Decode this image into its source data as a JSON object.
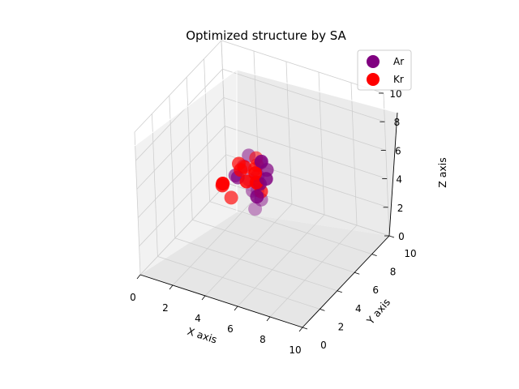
{
  "chart_data": {
    "type": "scatter",
    "projection": "3d",
    "title": "Optimized structure by SA",
    "xlabel": "X axis",
    "ylabel": "Y axis",
    "zlabel": "Z axis",
    "xlim": [
      0,
      10
    ],
    "ylim": [
      0,
      10
    ],
    "zlim": [
      0,
      10
    ],
    "x_ticks": [
      "0",
      "2",
      "4",
      "6",
      "8",
      "10"
    ],
    "y_ticks": [
      "0",
      "2",
      "4",
      "6",
      "8",
      "10"
    ],
    "z_ticks": [
      "0",
      "2",
      "4",
      "6",
      "8",
      "10"
    ],
    "grid": true,
    "legend_position": "top-right",
    "series": [
      {
        "name": "Ar",
        "color": "#800080",
        "points": [
          [
            4.6,
            5.2,
            4.3
          ],
          [
            5.0,
            4.4,
            4.5
          ],
          [
            4.2,
            5.0,
            5.0
          ],
          [
            4.7,
            5.1,
            5.4
          ],
          [
            5.1,
            4.6,
            5.3
          ],
          [
            3.7,
            4.4,
            5.5
          ],
          [
            4.3,
            4.9,
            6.8
          ],
          [
            5.3,
            4.5,
            7.0
          ],
          [
            5.4,
            4.9,
            6.2
          ],
          [
            4.0,
            4.8,
            6.0
          ],
          [
            4.4,
            5.0,
            4.3
          ],
          [
            4.4,
            5.2,
            2.9
          ],
          [
            4.8,
            5.2,
            3.7
          ],
          [
            5.5,
            4.6,
            5.8
          ],
          [
            3.9,
            4.3,
            5.5
          ],
          [
            4.8,
            5.3,
            6.2
          ]
        ]
      },
      {
        "name": "Kr",
        "color": "#ff0000",
        "points": [
          [
            4.7,
            5.0,
            6.7
          ],
          [
            4.3,
            4.4,
            6.3
          ],
          [
            4.8,
            4.9,
            6.3
          ],
          [
            4.6,
            5.0,
            5.9
          ],
          [
            4.1,
            4.3,
            6.1
          ],
          [
            5.0,
            4.3,
            6.2
          ],
          [
            5.0,
            4.4,
            5.5
          ],
          [
            4.9,
            4.7,
            5.2
          ],
          [
            3.4,
            3.5,
            5.4
          ],
          [
            3.2,
            3.8,
            5.0
          ],
          [
            5.1,
            4.7,
            4.7
          ],
          [
            3.5,
            4.2,
            4.0
          ],
          [
            4.0,
            4.3,
            6.5
          ],
          [
            4.5,
            4.2,
            5.5
          ]
        ]
      }
    ]
  }
}
